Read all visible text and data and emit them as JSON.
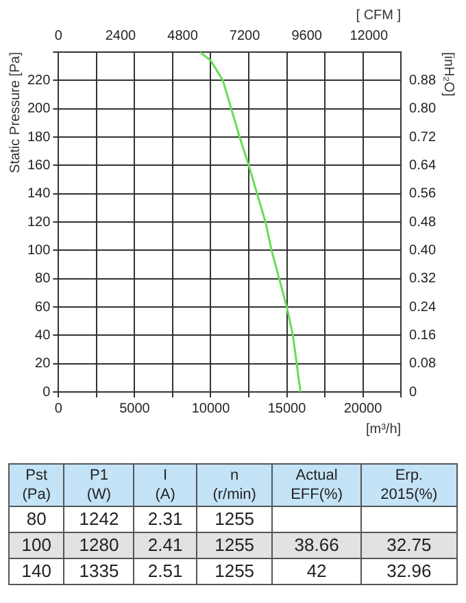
{
  "chart_data": [
    {
      "type": "line",
      "ylabel": "Static Pressure [Pa]",
      "xlabel": "[m³/h]",
      "x2label": "[ CFM ]",
      "y2label": "[inH₂O]",
      "x": [
        9300,
        10000,
        10800,
        11900,
        12500,
        13050,
        13600,
        14000,
        14500,
        15000,
        15400,
        15900
      ],
      "series": [
        {
          "color": "#66dd55",
          "values": [
            240,
            234,
            220,
            180,
            160,
            140,
            120,
            100,
            80,
            60,
            40,
            0
          ]
        }
      ],
      "xlim": [
        0,
        22500
      ],
      "xticks": [
        0,
        {
          "value": 2500,
          "label": null
        },
        5000,
        {
          "value": 7500,
          "label": null
        },
        10000,
        {
          "value": 12500,
          "label": null
        },
        15000,
        {
          "value": 17500,
          "label": null
        },
        20000,
        {
          "value": 22500,
          "label": null
        }
      ],
      "x2lim": [
        0,
        13240
      ],
      "x2ticks": [
        0,
        2400,
        4800,
        7200,
        9600,
        12000
      ],
      "ylim": [
        0,
        240
      ],
      "yticks": [
        0,
        20,
        40,
        60,
        80,
        100,
        120,
        140,
        160,
        180,
        200,
        220,
        {
          "value": 240,
          "label": null
        }
      ],
      "y2lim": [
        0,
        0.96
      ],
      "y2ticks": [
        0,
        0.08,
        0.16,
        0.24,
        0.32,
        {
          "value": 0.4,
          "label": "0.40"
        },
        0.48,
        0.56,
        0.64,
        0.72,
        {
          "value": 0.8,
          "label": "0.80"
        },
        0.88
      ],
      "grid": true,
      "legend": false,
      "marker": "none",
      "line_style": "solid"
    },
    {
      "type": "other",
      "categories": [
        "Pst\n(Pa)",
        "P1\n(W)",
        "I\n(A)",
        "n\n(r/min)",
        "Actual\nEFF(%)",
        "Erp.\n2015(%)"
      ],
      "cell_labels": [
        [
          "80",
          "1242",
          "2.31",
          "1255",
          null,
          null
        ],
        [
          "100",
          "1280",
          "2.41",
          "1255",
          "38.66",
          "32.75"
        ],
        [
          "140",
          "1335",
          "2.51",
          "1255",
          "42",
          "32.96"
        ]
      ]
    }
  ]
}
